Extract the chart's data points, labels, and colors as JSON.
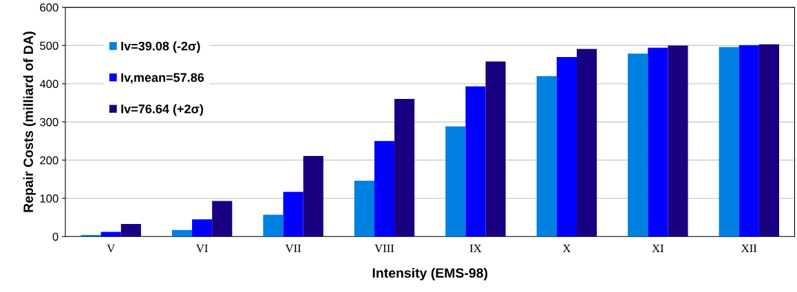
{
  "chart_data": {
    "type": "bar",
    "xlabel": "Intensity (EMS-98)",
    "ylabel": "Repair Costs (milliard of DA)",
    "categories": [
      "V",
      "VI",
      "VII",
      "VIII",
      "IX",
      "X",
      "XI",
      "XII"
    ],
    "series": [
      {
        "name": "Iv=39.08 (-2σ)",
        "color": "#0080e0",
        "values": [
          4,
          17,
          57,
          146,
          288,
          420,
          479,
          496
        ]
      },
      {
        "name": "Iv,mean=57.86",
        "color": "#0000ff",
        "values": [
          12,
          45,
          117,
          250,
          393,
          470,
          494,
          501
        ]
      },
      {
        "name": "Iv=76.64 (+2σ)",
        "color": "#180080",
        "values": [
          33,
          93,
          211,
          360,
          458,
          491,
          500,
          503
        ]
      }
    ],
    "ylim": [
      0,
      600
    ],
    "yticks": [
      0,
      100,
      200,
      300,
      400,
      500,
      600
    ],
    "grid": "y",
    "legend": "top left"
  }
}
